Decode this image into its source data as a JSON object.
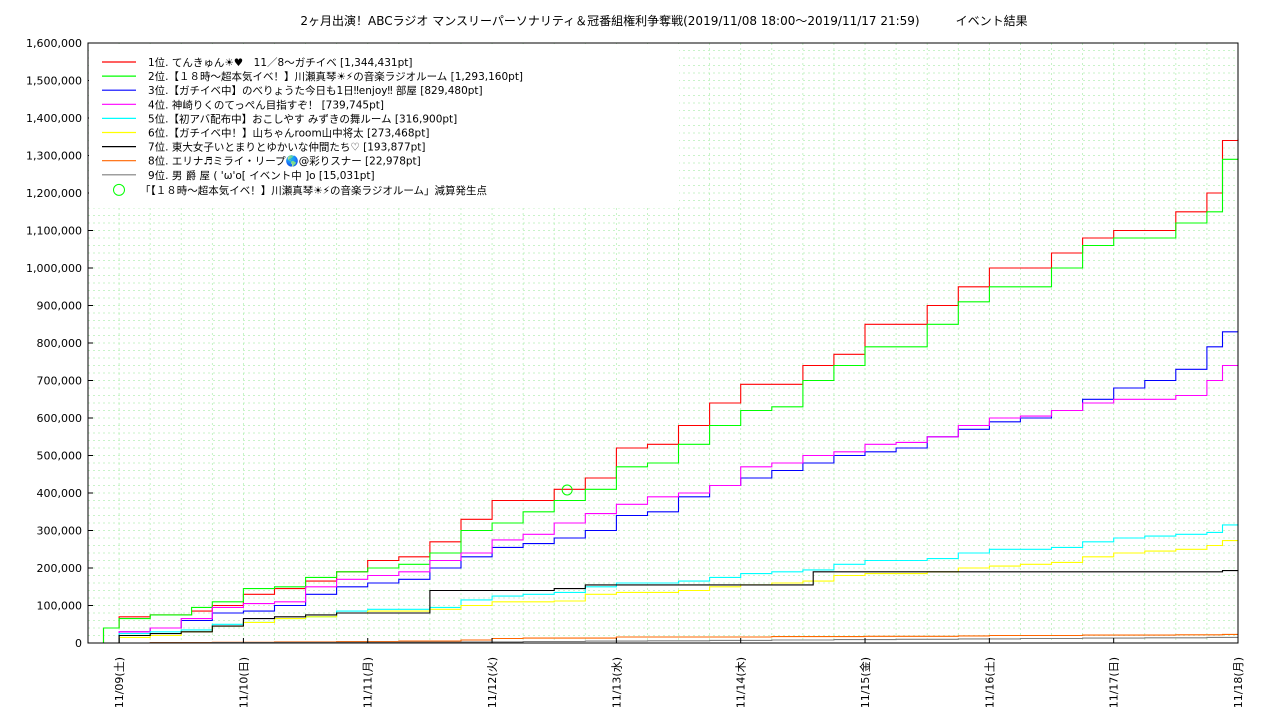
{
  "chart_data": {
    "type": "line",
    "title": "2ヶ月出演！ABCラジオ マンスリーパーソナリティ＆冠番組権利争奪戦(2019/11/08 18:00〜2019/11/17 21:59)　　　イベント結果",
    "xlabel": "",
    "ylabel": "",
    "ylim": [
      0,
      1600000
    ],
    "y_ticks": [
      "0",
      "100,000",
      "200,000",
      "300,000",
      "400,000",
      "500,000",
      "600,000",
      "700,000",
      "800,000",
      "900,000",
      "1,000,000",
      "1,100,000",
      "1,200,000",
      "1,300,000",
      "1,400,000",
      "1,500,000",
      "1,600,000"
    ],
    "x_ticks": [
      "11/09(土)",
      "11/10(日)",
      "11/11(月)",
      "11/12(火)",
      "11/13(水)",
      "11/14(木)",
      "11/15(金)",
      "11/16(土)",
      "11/17(日)",
      "11/18(月)"
    ],
    "x_tick_hours": [
      6,
      30,
      54,
      78,
      102,
      126,
      150,
      174,
      198,
      222
    ],
    "xlim_hours": [
      0,
      222
    ],
    "grid": true,
    "legend_position": "top-left",
    "series": [
      {
        "name": "1位. てんきゅん☀︎♥　11／8〜ガチイベ [1,344,431pt]",
        "color": "#ff0000",
        "x": [
          0,
          3,
          6,
          12,
          20,
          24,
          30,
          36,
          42,
          48,
          54,
          60,
          66,
          72,
          78,
          84,
          90,
          96,
          102,
          108,
          114,
          120,
          126,
          132,
          138,
          144,
          150,
          156,
          162,
          168,
          174,
          180,
          186,
          192,
          198,
          204,
          210,
          216,
          219,
          222
        ],
        "y": [
          0,
          40000,
          70000,
          75000,
          85000,
          100000,
          130000,
          145000,
          165000,
          190000,
          220000,
          230000,
          270000,
          330000,
          380000,
          380000,
          410000,
          440000,
          520000,
          530000,
          580000,
          640000,
          690000,
          690000,
          740000,
          770000,
          850000,
          850000,
          900000,
          950000,
          1000000,
          1000000,
          1040000,
          1080000,
          1100000,
          1100000,
          1150000,
          1200000,
          1340000,
          1344431
        ]
      },
      {
        "name": "2位.【１８時〜超本気イベ！】川瀬真琴☀︎⚡︎の音楽ラジオルーム [1,293,160pt]",
        "color": "#00ff00",
        "x": [
          0,
          3,
          6,
          12,
          20,
          24,
          30,
          36,
          42,
          48,
          54,
          60,
          66,
          72,
          78,
          84,
          90,
          96,
          102,
          108,
          114,
          120,
          126,
          132,
          138,
          144,
          150,
          156,
          162,
          168,
          174,
          180,
          186,
          192,
          198,
          204,
          210,
          216,
          219,
          222
        ],
        "y": [
          0,
          40000,
          65000,
          75000,
          95000,
          110000,
          145000,
          150000,
          175000,
          190000,
          200000,
          210000,
          240000,
          300000,
          320000,
          350000,
          380000,
          410000,
          470000,
          480000,
          530000,
          580000,
          620000,
          630000,
          700000,
          740000,
          790000,
          790000,
          850000,
          910000,
          950000,
          950000,
          1000000,
          1060000,
          1080000,
          1080000,
          1120000,
          1150000,
          1290000,
          1293160
        ]
      },
      {
        "name": "3位.【ガチイベ中】のべりょうた今日も1日‼︎enjoy‼︎ 部屋 [829,480pt]",
        "color": "#0000ff",
        "x": [
          0,
          6,
          12,
          18,
          24,
          30,
          36,
          42,
          48,
          54,
          60,
          66,
          72,
          78,
          84,
          90,
          96,
          102,
          108,
          114,
          120,
          126,
          132,
          138,
          144,
          150,
          156,
          162,
          168,
          174,
          180,
          186,
          192,
          198,
          204,
          210,
          216,
          219,
          222
        ],
        "y": [
          0,
          30000,
          40000,
          60000,
          80000,
          85000,
          100000,
          130000,
          150000,
          160000,
          170000,
          200000,
          230000,
          255000,
          265000,
          280000,
          300000,
          340000,
          350000,
          390000,
          420000,
          440000,
          460000,
          480000,
          500000,
          510000,
          520000,
          550000,
          570000,
          590000,
          600000,
          620000,
          650000,
          680000,
          700000,
          730000,
          790000,
          830000,
          829480
        ]
      },
      {
        "name": "4位. 神崎りくのてっぺん目指すぞ！ [739,745pt]",
        "color": "#ff00ff",
        "x": [
          0,
          6,
          12,
          18,
          24,
          30,
          36,
          42,
          48,
          54,
          60,
          66,
          72,
          78,
          84,
          90,
          96,
          102,
          108,
          114,
          120,
          126,
          132,
          138,
          144,
          150,
          156,
          162,
          168,
          174,
          180,
          186,
          192,
          198,
          204,
          210,
          216,
          219,
          222
        ],
        "y": [
          0,
          30000,
          40000,
          65000,
          95000,
          105000,
          110000,
          150000,
          170000,
          180000,
          190000,
          220000,
          240000,
          275000,
          290000,
          320000,
          345000,
          370000,
          390000,
          400000,
          420000,
          470000,
          480000,
          500000,
          510000,
          530000,
          535000,
          550000,
          580000,
          600000,
          605000,
          620000,
          640000,
          650000,
          650000,
          660000,
          700000,
          740000,
          739745
        ]
      },
      {
        "name": "5位.【初アバ配布中】おこしやす みずきの舞ルーム [316,900pt]",
        "color": "#00ffff",
        "x": [
          0,
          6,
          12,
          18,
          24,
          30,
          36,
          42,
          48,
          54,
          60,
          66,
          72,
          78,
          84,
          90,
          96,
          102,
          108,
          114,
          120,
          126,
          132,
          138,
          144,
          150,
          156,
          162,
          168,
          174,
          180,
          186,
          192,
          198,
          204,
          210,
          216,
          219,
          222
        ],
        "y": [
          0,
          25000,
          30000,
          35000,
          50000,
          55000,
          65000,
          70000,
          85000,
          90000,
          90000,
          95000,
          115000,
          125000,
          130000,
          135000,
          150000,
          160000,
          160000,
          165000,
          175000,
          185000,
          190000,
          195000,
          210000,
          220000,
          220000,
          225000,
          240000,
          250000,
          250000,
          255000,
          270000,
          280000,
          285000,
          290000,
          295000,
          315000,
          316900
        ]
      },
      {
        "name": "6位.【ガチイベ中！】山ちゃんroom山中将太 [273,468pt]",
        "color": "#ffff00",
        "x": [
          0,
          6,
          12,
          18,
          24,
          30,
          36,
          42,
          48,
          54,
          60,
          66,
          72,
          78,
          84,
          90,
          96,
          102,
          108,
          114,
          120,
          126,
          132,
          138,
          144,
          150,
          156,
          162,
          168,
          174,
          180,
          186,
          192,
          198,
          204,
          210,
          216,
          219,
          222
        ],
        "y": [
          0,
          15000,
          20000,
          30000,
          45000,
          55000,
          65000,
          70000,
          80000,
          85000,
          85000,
          90000,
          100000,
          110000,
          110000,
          112000,
          130000,
          135000,
          135000,
          140000,
          150000,
          155000,
          160000,
          165000,
          180000,
          185000,
          185000,
          190000,
          200000,
          205000,
          210000,
          215000,
          230000,
          240000,
          245000,
          250000,
          260000,
          273000,
          273468
        ]
      },
      {
        "name": "7位. 東大女子いとまりとゆかいな仲間たち♡ [193,877pt]",
        "color": "#000000",
        "x": [
          0,
          6,
          12,
          18,
          24,
          30,
          36,
          42,
          48,
          54,
          60,
          64,
          66,
          72,
          78,
          84,
          90,
          96,
          102,
          108,
          114,
          120,
          126,
          132,
          138,
          140,
          144,
          150,
          156,
          162,
          168,
          174,
          180,
          186,
          192,
          198,
          204,
          210,
          216,
          219,
          222
        ],
        "y": [
          0,
          20000,
          25000,
          30000,
          45000,
          65000,
          70000,
          75000,
          80000,
          80000,
          80000,
          80000,
          140000,
          140000,
          140000,
          140000,
          145000,
          155000,
          155000,
          155000,
          155000,
          155000,
          155000,
          155000,
          155000,
          190000,
          190000,
          190000,
          190000,
          190000,
          190000,
          190000,
          190000,
          190000,
          190000,
          190000,
          190000,
          190000,
          190000,
          193000,
          193877
        ]
      },
      {
        "name": "8位. エリナ♬ミライ・リープ🌎@彩りスナー [22,978pt]",
        "color": "#ff6600",
        "x": [
          0,
          12,
          24,
          36,
          48,
          60,
          72,
          78,
          84,
          90,
          96,
          102,
          108,
          114,
          120,
          126,
          132,
          138,
          144,
          150,
          156,
          162,
          168,
          174,
          180,
          186,
          192,
          198,
          204,
          210,
          216,
          219,
          222
        ],
        "y": [
          0,
          1000,
          2000,
          3000,
          4000,
          5000,
          8000,
          12000,
          13000,
          13000,
          13000,
          16000,
          16000,
          16000,
          16000,
          16000,
          17000,
          17000,
          17000,
          18000,
          18000,
          18000,
          19000,
          20000,
          20000,
          20000,
          21000,
          21000,
          21000,
          22000,
          22000,
          22978,
          22978
        ]
      },
      {
        "name": "9位. 男 爵 屋 ( 'ω'o[ イベント中 ]o [15,031pt]",
        "color": "#7f7f7f",
        "x": [
          0,
          12,
          24,
          36,
          48,
          60,
          72,
          84,
          96,
          108,
          120,
          132,
          144,
          156,
          168,
          180,
          192,
          204,
          216,
          222
        ],
        "y": [
          0,
          500,
          1000,
          1500,
          2000,
          2500,
          3000,
          4000,
          5000,
          6000,
          7000,
          8000,
          9000,
          10000,
          11000,
          12000,
          13000,
          14000,
          15000,
          15031
        ]
      }
    ],
    "marker": {
      "label": "「【１８時〜超本気イベ！】川瀬真琴☀︎⚡︎の音楽ラジオルーム」減算発生点",
      "x": 92.5,
      "y": 408000,
      "color": "#00ff00"
    }
  }
}
